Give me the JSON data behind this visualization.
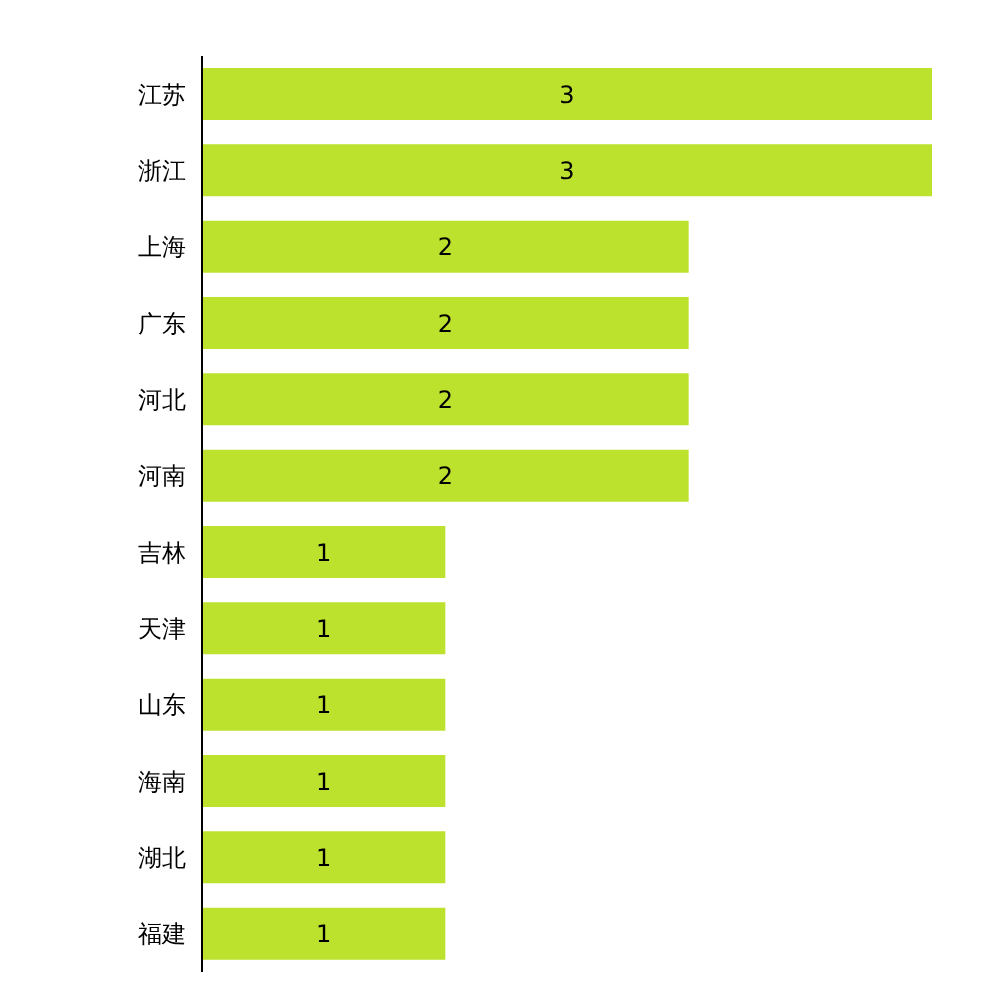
{
  "chart_data": {
    "type": "bar",
    "orientation": "horizontal",
    "categories": [
      "江苏",
      "浙江",
      "上海",
      "广东",
      "河北",
      "河南",
      "吉林",
      "天津",
      "山东",
      "海南",
      "湖北",
      "福建"
    ],
    "values": [
      3,
      3,
      2,
      2,
      2,
      2,
      1,
      1,
      1,
      1,
      1,
      1
    ],
    "color": "#bde22e",
    "data_labels": true
  }
}
